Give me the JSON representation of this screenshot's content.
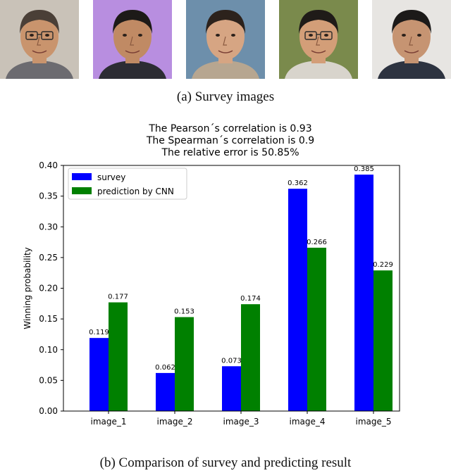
{
  "figure": {
    "caption_a": "(a)  Survey images",
    "caption_b": "(b)  Comparison of survey and predicting result",
    "photos": [
      {
        "bg": "#c9c2b8",
        "skin": "#c9946d",
        "hair": "#4a3f37",
        "shirt": "#6c6b70",
        "glasses": true
      },
      {
        "bg": "#b88ee0",
        "skin": "#c08a64",
        "hair": "#1d1a18",
        "shirt": "#2c2c33",
        "glasses": false
      },
      {
        "bg": "#6d8fab",
        "skin": "#d6a583",
        "hair": "#2c221c",
        "shirt": "#b7a690",
        "glasses": false
      },
      {
        "bg": "#7a8a4c",
        "skin": "#d39e78",
        "hair": "#1f1b18",
        "shirt": "#d8d4cc",
        "glasses": true
      },
      {
        "bg": "#e7e5e2",
        "skin": "#c69472",
        "hair": "#1c1a19",
        "shirt": "#2d3340",
        "glasses": false
      }
    ]
  },
  "chart_data": {
    "type": "bar",
    "title_lines": [
      "The Pearson´s correlation is 0.93",
      "The Spearman´s correlation is 0.9",
      "The relative error is 50.85%"
    ],
    "ylabel": "Winning probability",
    "xlabel": "",
    "categories": [
      "image_1",
      "image_2",
      "image_3",
      "image_4",
      "image_5"
    ],
    "ylim": [
      0,
      0.4
    ],
    "yticks": [
      "0.00",
      "0.05",
      "0.10",
      "0.15",
      "0.20",
      "0.25",
      "0.30",
      "0.35",
      "0.40"
    ],
    "legend_position": "top-left",
    "series": [
      {
        "name": "survey",
        "color": "#0000ff",
        "values": [
          0.119,
          0.062,
          0.073,
          0.362,
          0.385
        ],
        "labels": [
          "0.119",
          "0.062",
          "0.073",
          "0.362",
          "0.385"
        ]
      },
      {
        "name": "prediction by CNN",
        "color": "#008000",
        "values": [
          0.177,
          0.153,
          0.174,
          0.266,
          0.229
        ],
        "labels": [
          "0.177",
          "0.153",
          "0.174",
          "0.266",
          "0.229"
        ]
      }
    ]
  }
}
